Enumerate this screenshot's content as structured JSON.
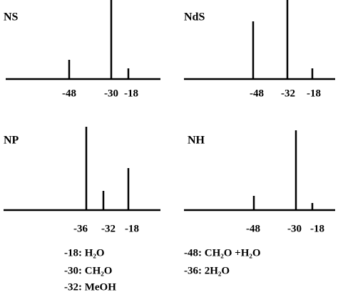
{
  "chart_data": [
    {
      "type": "bar",
      "title": "NS",
      "categories": [
        "-48",
        "-30",
        "-18"
      ],
      "values": [
        27,
        115,
        15
      ],
      "color": "#000000",
      "ylim": [
        0,
        120
      ]
    },
    {
      "type": "bar",
      "title": "NdS",
      "categories": [
        "-48",
        "-32",
        "-18"
      ],
      "values": [
        81,
        115,
        15
      ],
      "color": "#000000",
      "ylim": [
        0,
        120
      ]
    },
    {
      "type": "bar",
      "title": "NP",
      "categories": [
        "-36",
        "-32",
        "-18"
      ],
      "values": [
        117,
        27,
        59
      ],
      "color": "#000000",
      "ylim": [
        0,
        120
      ]
    },
    {
      "type": "bar",
      "title": "NH",
      "categories": [
        "-48",
        "-30",
        "-18"
      ],
      "values": [
        20,
        112,
        10
      ],
      "color": "#000000",
      "ylim": [
        0,
        120
      ]
    }
  ],
  "notes": {
    "left": [
      "-18: H₂O",
      "-30: CH₂O",
      "-32: MeOH"
    ],
    "right": [
      "-48: CH₂O +H₂O",
      "-36: 2H₂O"
    ]
  }
}
